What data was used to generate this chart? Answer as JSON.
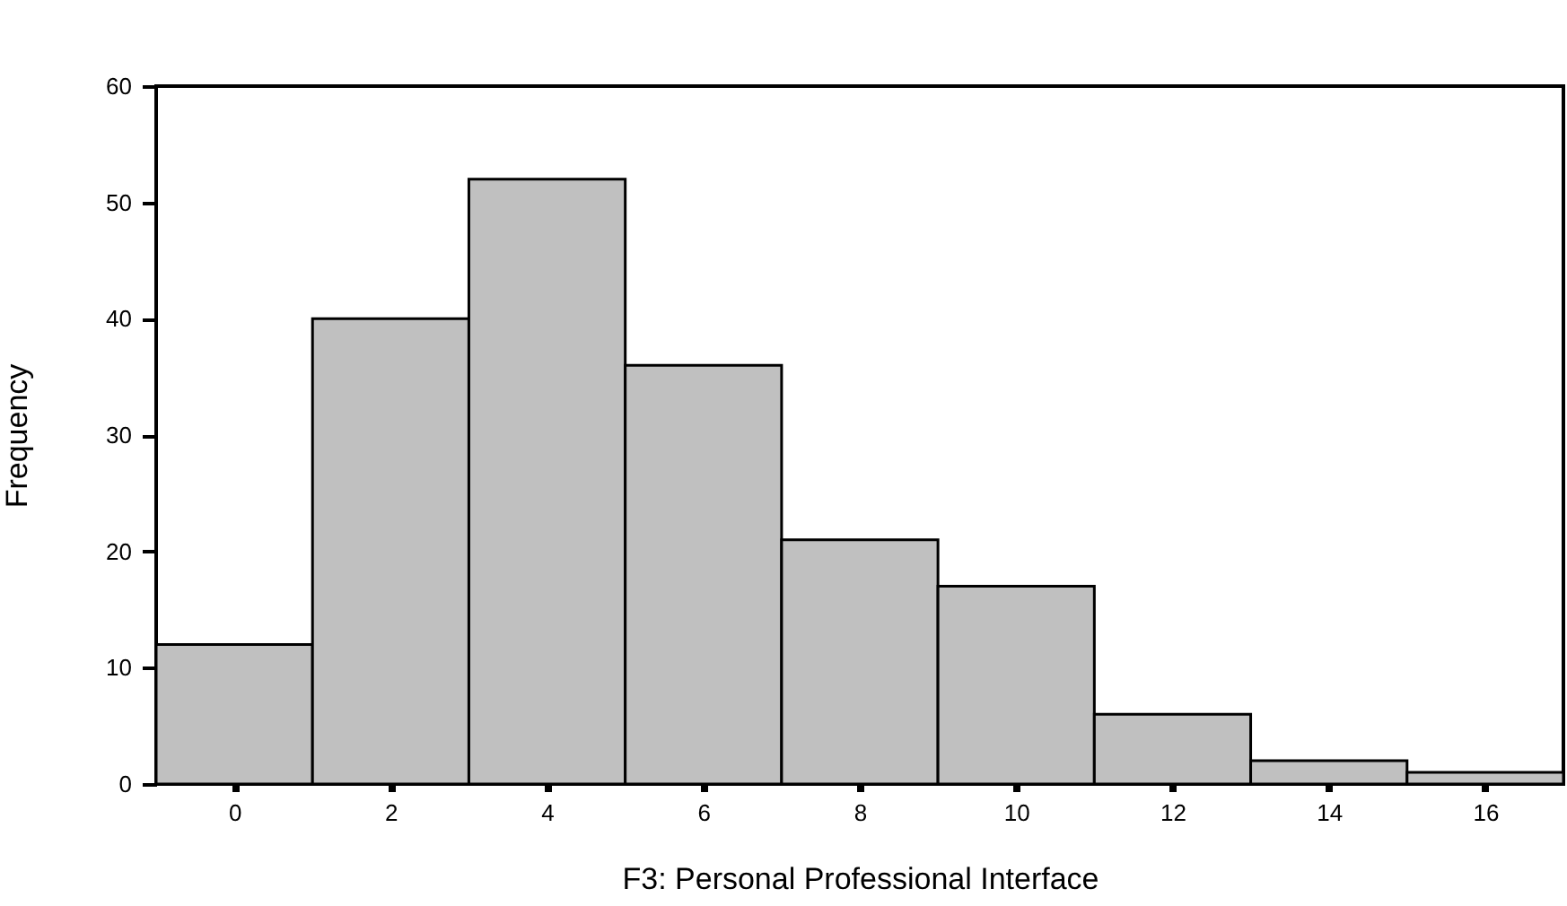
{
  "chart_data": {
    "type": "histogram",
    "xlabel": "F3: Personal Professional Interface",
    "ylabel": "Frequency",
    "bins": [
      -1,
      1,
      3,
      5,
      7,
      9,
      11,
      13,
      15,
      17
    ],
    "values": [
      12,
      40,
      52,
      36,
      21,
      17,
      6,
      2,
      1
    ],
    "color": "#c0c0c0",
    "xlim": [
      -1,
      17
    ],
    "xticks": [
      0,
      2,
      4,
      6,
      8,
      10,
      12,
      14,
      16
    ],
    "ylim": [
      0,
      60
    ],
    "yticks": [
      0,
      10,
      20,
      30,
      40,
      50,
      60
    ],
    "grid": false
  }
}
